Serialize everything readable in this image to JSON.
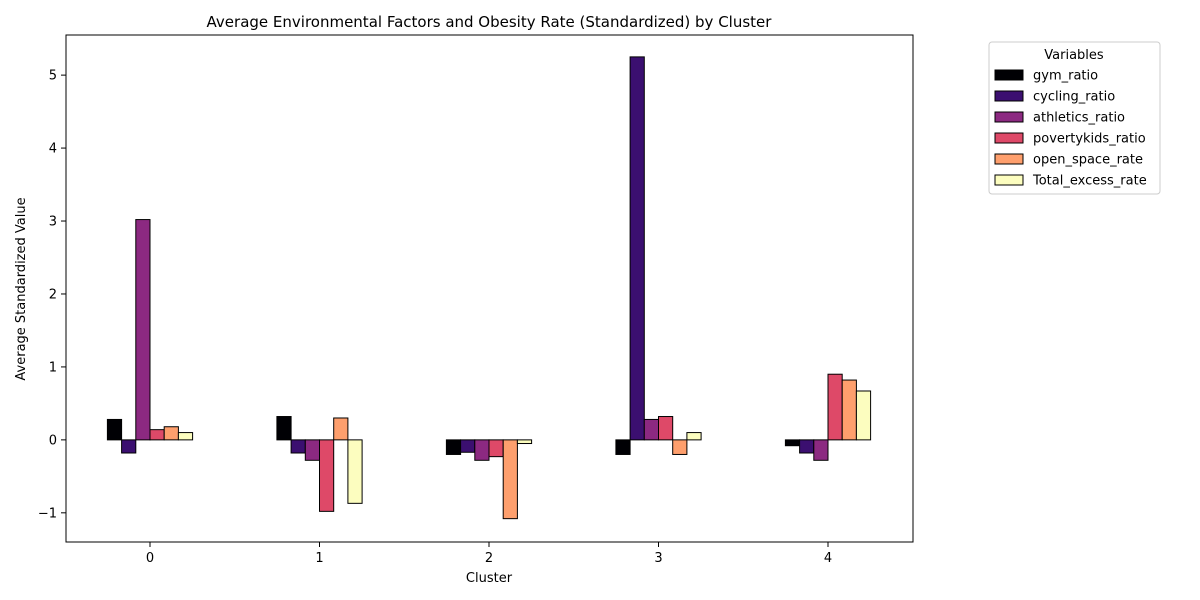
{
  "chart_data": {
    "type": "bar",
    "title": "Average Environmental Factors and Obesity Rate (Standardized) by Cluster",
    "xlabel": "Cluster",
    "ylabel": "Average Standardized Value",
    "categories": [
      "0",
      "1",
      "2",
      "3",
      "4"
    ],
    "ylim": [
      -1.4,
      5.55
    ],
    "yticks": [
      -1,
      0,
      1,
      2,
      3,
      4,
      5
    ],
    "ytick_labels": [
      "−1",
      "0",
      "1",
      "2",
      "3",
      "4",
      "5"
    ],
    "grid": false,
    "legend": {
      "title": "Variables",
      "placement": "outside-top-right"
    },
    "series": [
      {
        "name": "gym_ratio",
        "color": "#000004",
        "values": [
          0.28,
          0.32,
          -0.2,
          -0.2,
          -0.08
        ]
      },
      {
        "name": "cycling_ratio",
        "color": "#3b0f70",
        "values": [
          -0.18,
          -0.18,
          -0.17,
          5.25,
          -0.18
        ]
      },
      {
        "name": "athletics_ratio",
        "color": "#8c2981",
        "values": [
          3.02,
          -0.28,
          -0.28,
          0.28,
          -0.28
        ]
      },
      {
        "name": "povertykids_ratio",
        "color": "#de4968",
        "values": [
          0.14,
          -0.98,
          -0.23,
          0.32,
          0.9
        ]
      },
      {
        "name": "open_space_rate",
        "color": "#fe9f6d",
        "values": [
          0.18,
          0.3,
          -1.08,
          -0.2,
          0.82
        ]
      },
      {
        "name": "Total_excess_rate",
        "color": "#fcfdbf",
        "values": [
          0.1,
          -0.87,
          -0.05,
          0.1,
          0.67
        ]
      }
    ]
  }
}
